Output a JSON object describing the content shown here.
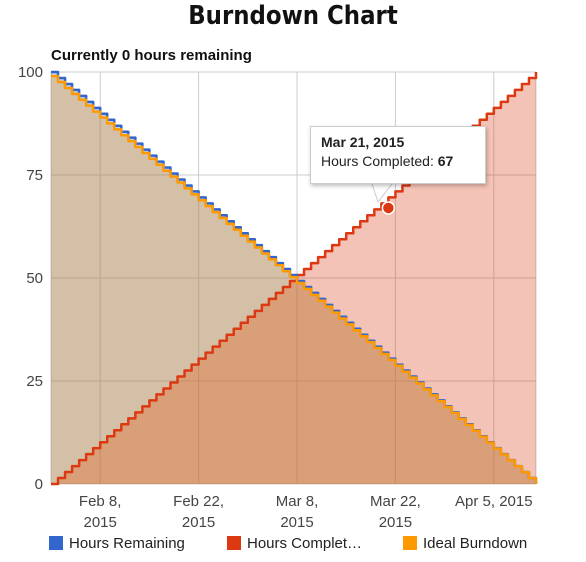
{
  "title": "Burndown Chart",
  "subtitle": "Currently 0 hours remaining",
  "tooltip": {
    "date": "Mar 21, 2015",
    "label": "Hours Completed: ",
    "value": "67"
  },
  "colors": {
    "remaining": "#3366cc",
    "completed": "#dc3912",
    "ideal": "#ff9900",
    "grid": "#cccccc"
  },
  "chart_data": {
    "type": "area",
    "x_start": "2015-02-01",
    "x_end": "2015-04-11",
    "y_ticks": [
      "100",
      "75",
      "50",
      "25",
      "0"
    ],
    "ylim": [
      0,
      100
    ],
    "x_ticks": [
      {
        "date": "2015-02-08",
        "line1": "Feb 8,",
        "line2": "2015"
      },
      {
        "date": "2015-02-22",
        "line1": "Feb 22,",
        "line2": "2015"
      },
      {
        "date": "2015-03-08",
        "line1": "Mar 8,",
        "line2": "2015"
      },
      {
        "date": "2015-03-22",
        "line1": "Mar 22,",
        "line2": "2015"
      },
      {
        "date": "2015-04-05",
        "line1": "Apr 5, 2015",
        "line2": ""
      }
    ],
    "series": [
      {
        "name": "Hours Remaining",
        "color": "#3366cc",
        "points": [
          [
            "2015-02-01",
            100
          ],
          [
            "2015-04-11",
            0
          ]
        ]
      },
      {
        "name": "Hours Complet…",
        "color": "#dc3912",
        "points": [
          [
            "2015-02-01",
            0
          ],
          [
            "2015-04-11",
            100
          ]
        ]
      },
      {
        "name": "Ideal Burndown",
        "color": "#ff9900",
        "points": [
          [
            "2015-02-01",
            99
          ],
          [
            "2015-04-11",
            0
          ]
        ]
      }
    ],
    "highlight": {
      "series": "Hours Complet…",
      "date": "2015-03-21",
      "value": 67
    }
  }
}
